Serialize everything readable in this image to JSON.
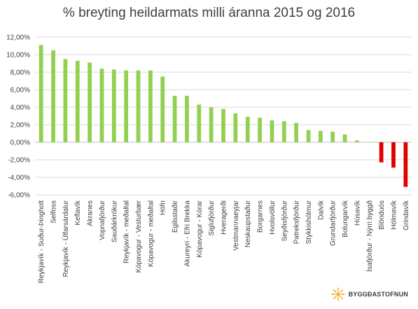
{
  "chart_data": {
    "type": "bar",
    "title": "% breyting heildarmats milli áranna 2015 og 2016",
    "xlabel": "",
    "ylabel": "",
    "ylim": [
      -0.06,
      0.12
    ],
    "yticks": [
      "12,00%",
      "10,00%",
      "8,00%",
      "6,00%",
      "4,00%",
      "2,00%",
      "0,00%",
      "-2,00%",
      "-4,00%",
      "-6,00%"
    ],
    "ytick_values": [
      0.12,
      0.1,
      0.08,
      0.06,
      0.04,
      0.02,
      0.0,
      -0.02,
      -0.04,
      -0.06
    ],
    "grid": true,
    "legend": "none",
    "colors": {
      "positive": "#92d050",
      "negative": "#e00000",
      "grid": "#d9d9d9",
      "axis": "#bfbfbf",
      "text": "#404040"
    },
    "categories": [
      "Reykjavík - Suður-Þingholt",
      "Selfoss",
      "Reykjavík - Úlfarsárdalur",
      "Keflavík",
      "Akranes",
      "Vopnafjörður",
      "Sauðárkrókur",
      "Reykjavík - meðaltal",
      "Kópavogur - Vesturbær",
      "Kópavogur - meðaltal",
      "Höfn",
      "Egilsstaðir",
      "Akureyri - Efri Brekka",
      "Kópavogur - Kórar",
      "Siglufjörður",
      "Hveragerði",
      "Vestmannaeyjar",
      "Neskaupstaður",
      "Borgarnes",
      "Hvolsvöllur",
      "Seyðisfjörður",
      "Patreksfjörður",
      "Stykkishólmur",
      "Dalvík",
      "Grundarfjörður",
      "Bolungarvík",
      "Húsavík",
      "Ísafjörður - Nýrri byggð",
      "Blönduós",
      "Hólmavík",
      "Grindavík"
    ],
    "values": [
      0.111,
      0.105,
      0.095,
      0.093,
      0.091,
      0.084,
      0.083,
      0.082,
      0.082,
      0.082,
      0.075,
      0.053,
      0.053,
      0.043,
      0.04,
      0.038,
      0.033,
      0.029,
      0.028,
      0.025,
      0.024,
      0.022,
      0.014,
      0.013,
      0.012,
      0.009,
      0.002,
      0.0,
      -0.023,
      -0.029,
      -0.051
    ]
  },
  "logo": {
    "text": "BYGGÐASTOFNUN",
    "icon": "sunburst-logo-icon"
  }
}
